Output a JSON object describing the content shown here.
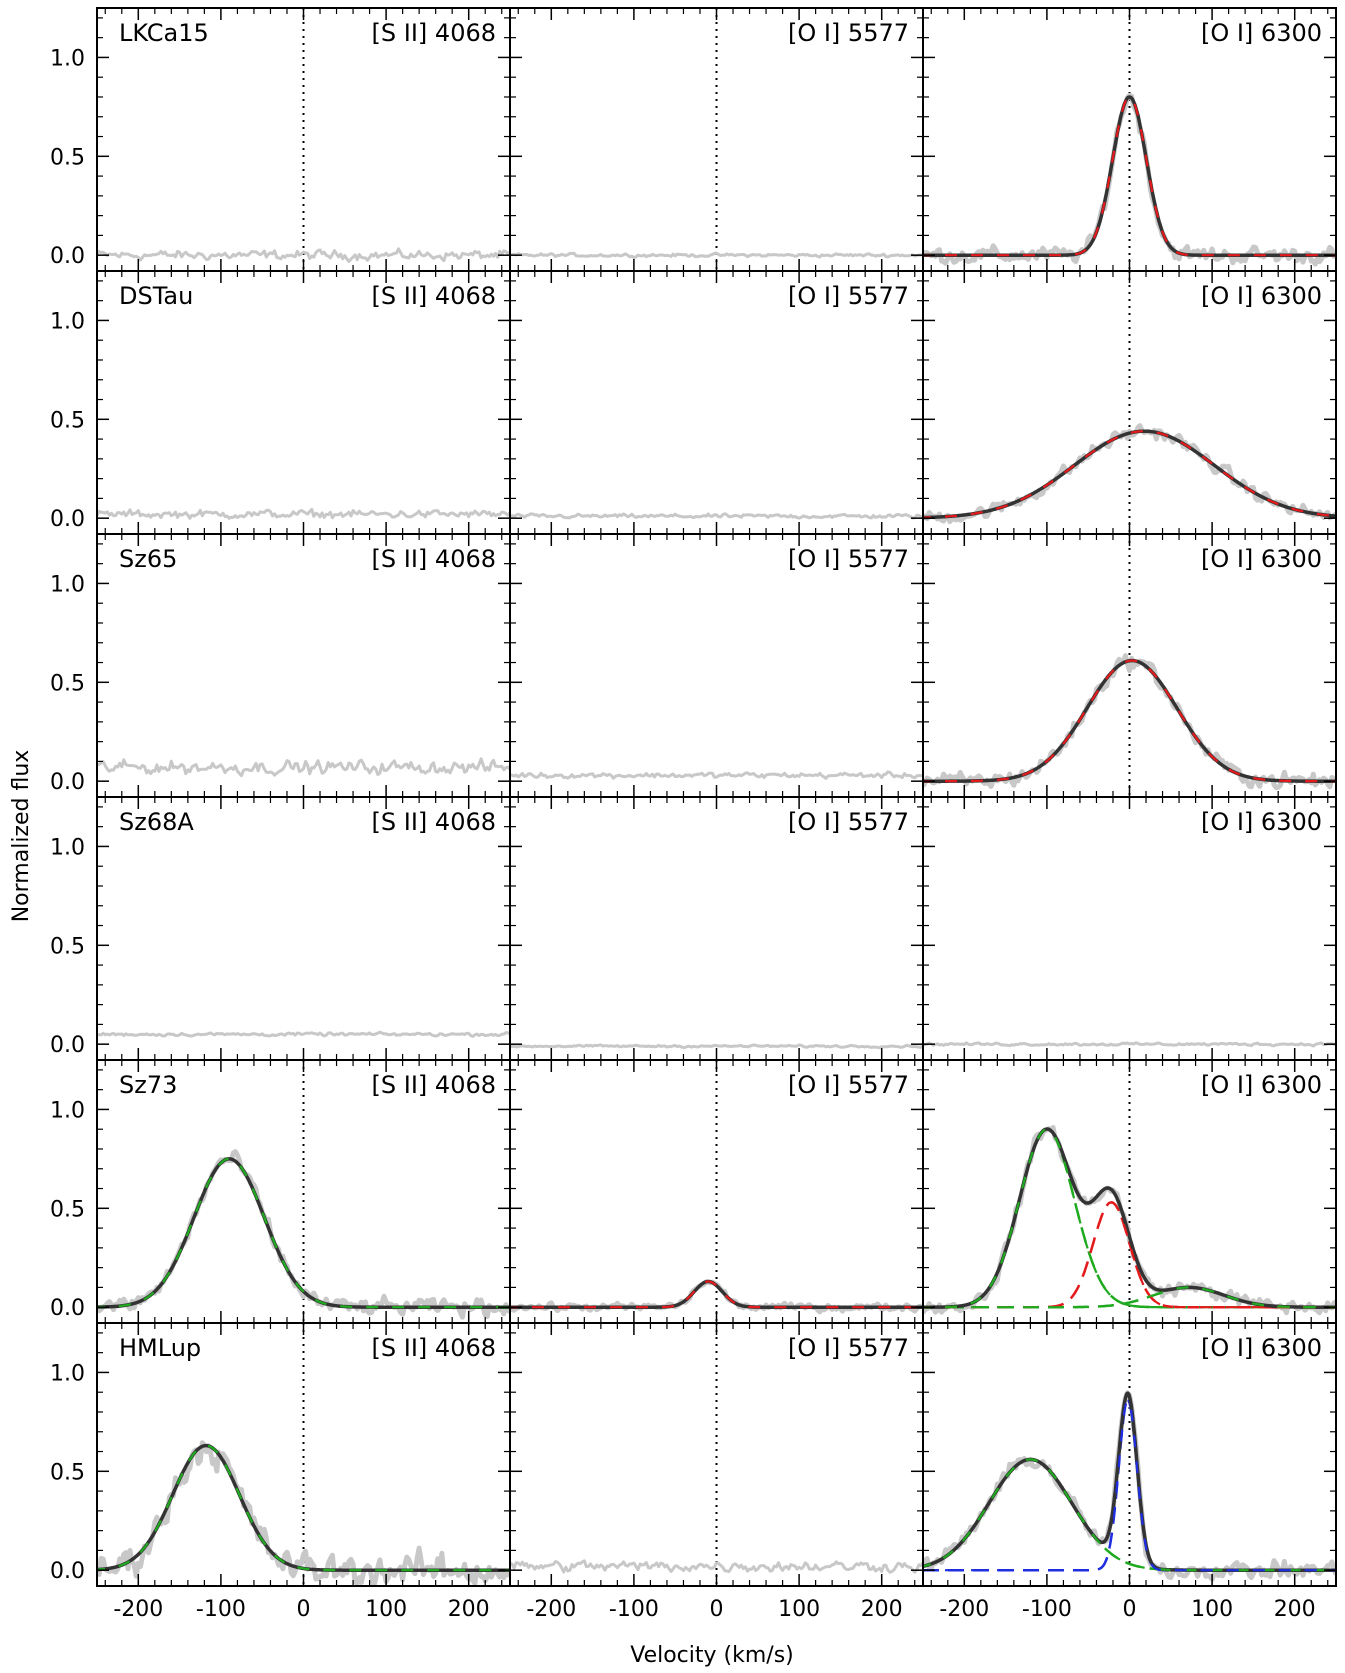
{
  "figure": {
    "ylabel": "Normalized flux",
    "xlabel": "Velocity (km/s)"
  },
  "chart_data": {
    "type": "line",
    "xlabel": "Velocity (km/s)",
    "ylabel": "Normalized flux",
    "xlim": [
      -250,
      250
    ],
    "ylim": [
      -0.08,
      1.25
    ],
    "x_ticks": [
      -200,
      -100,
      0,
      100,
      200
    ],
    "y_ticks": [
      0.0,
      0.5,
      1.0
    ],
    "x_tick_labels": [
      "-200",
      "-100",
      "0",
      "100",
      "200"
    ],
    "y_tick_labels": [
      "0.0",
      "0.5",
      "1.0"
    ],
    "grid": false,
    "columns": [
      "[S II] 4068",
      "[O I] 5577",
      "[O I] 6300"
    ],
    "rows": [
      "LKCa15",
      "DSTau",
      "Sz65",
      "Sz68A",
      "Sz73",
      "HMLup"
    ],
    "colors": {
      "data": "#c8c8c8",
      "total_fit": "#333333",
      "red_component": "#e41a1c",
      "green_component": "#1faa1f",
      "blue_component": "#1f2ee0",
      "zero_line": "#000000"
    },
    "panels": [
      {
        "star": "LKCa15",
        "line": "[S II] 4068",
        "zero_line": true,
        "noise_level": 0.035,
        "baseline": 0.0,
        "fit": []
      },
      {
        "star": "LKCa15",
        "line": "[O I] 5577",
        "zero_line": true,
        "noise_level": 0.012,
        "baseline": 0.0,
        "fit": []
      },
      {
        "star": "LKCa15",
        "line": "[O I] 6300",
        "zero_line": true,
        "noise_level": 0.06,
        "baseline": 0.0,
        "fit": [
          {
            "color": "red",
            "amplitude": 0.8,
            "center": 0,
            "fwhm": 48
          }
        ]
      },
      {
        "star": "DSTau",
        "line": "[S II] 4068",
        "zero_line": false,
        "noise_level": 0.03,
        "baseline": 0.02,
        "fit": []
      },
      {
        "star": "DSTau",
        "line": "[O I] 5577",
        "zero_line": false,
        "noise_level": 0.015,
        "baseline": 0.01,
        "fit": []
      },
      {
        "star": "DSTau",
        "line": "[O I] 6300",
        "zero_line": true,
        "noise_level": 0.05,
        "baseline": 0.0,
        "fit": [
          {
            "color": "red",
            "amplitude": 0.44,
            "center": 18,
            "fwhm": 200
          }
        ]
      },
      {
        "star": "Sz65",
        "line": "[S II] 4068",
        "zero_line": false,
        "noise_level": 0.05,
        "baseline": 0.07,
        "fit": []
      },
      {
        "star": "Sz65",
        "line": "[O I] 5577",
        "zero_line": false,
        "noise_level": 0.02,
        "baseline": 0.03,
        "fit": []
      },
      {
        "star": "Sz65",
        "line": "[O I] 6300",
        "zero_line": true,
        "noise_level": 0.06,
        "baseline": 0.0,
        "fit": [
          {
            "color": "red",
            "amplitude": 0.61,
            "center": 3,
            "fwhm": 128
          }
        ]
      },
      {
        "star": "Sz68A",
        "line": "[S II] 4068",
        "zero_line": false,
        "noise_level": 0.012,
        "baseline": 0.05,
        "fit": []
      },
      {
        "star": "Sz68A",
        "line": "[O I] 5577",
        "zero_line": false,
        "noise_level": 0.008,
        "baseline": -0.01,
        "fit": []
      },
      {
        "star": "Sz68A",
        "line": "[O I] 6300",
        "zero_line": false,
        "noise_level": 0.01,
        "baseline": 0.0,
        "fit": []
      },
      {
        "star": "Sz73",
        "line": "[S II] 4068",
        "zero_line": true,
        "noise_level": 0.06,
        "baseline": 0.0,
        "fit": [
          {
            "color": "green",
            "amplitude": 0.75,
            "center": -90,
            "fwhm": 100
          }
        ]
      },
      {
        "star": "Sz73",
        "line": "[O I] 5577",
        "zero_line": true,
        "noise_level": 0.025,
        "baseline": 0.0,
        "fit": [
          {
            "color": "red",
            "amplitude": 0.13,
            "center": -10,
            "fwhm": 40
          }
        ]
      },
      {
        "star": "Sz73",
        "line": "[O I] 6300",
        "zero_line": true,
        "noise_level": 0.05,
        "baseline": 0.0,
        "fit": [
          {
            "color": "green",
            "amplitude": 0.9,
            "center": -100,
            "fwhm": 78
          },
          {
            "color": "red",
            "amplitude": 0.53,
            "center": -22,
            "fwhm": 52
          },
          {
            "color": "green",
            "amplitude": 0.1,
            "center": 72,
            "fwhm": 100
          }
        ]
      },
      {
        "star": "HMLup",
        "line": "[S II] 4068",
        "zero_line": true,
        "noise_level": 0.12,
        "baseline": 0.0,
        "fit": [
          {
            "color": "green",
            "amplitude": 0.63,
            "center": -118,
            "fwhm": 95
          }
        ]
      },
      {
        "star": "HMLup",
        "line": "[O I] 5577",
        "zero_line": true,
        "noise_level": 0.04,
        "baseline": 0.02,
        "fit": []
      },
      {
        "star": "HMLup",
        "line": "[O I] 6300",
        "zero_line": true,
        "noise_level": 0.06,
        "baseline": 0.0,
        "fit": [
          {
            "color": "green",
            "amplitude": 0.56,
            "center": -120,
            "fwhm": 118
          },
          {
            "color": "blue",
            "amplitude": 0.86,
            "center": -2,
            "fwhm": 26
          }
        ]
      }
    ]
  }
}
